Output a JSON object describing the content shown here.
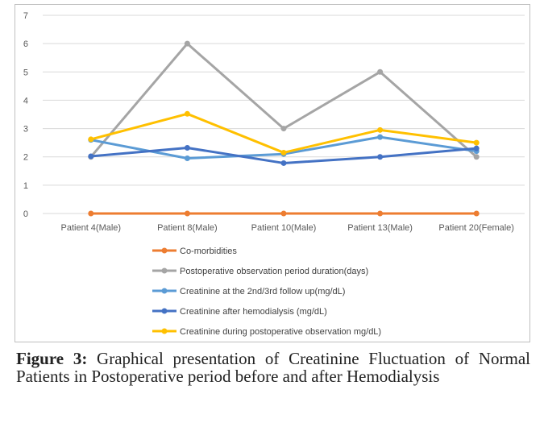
{
  "chart_data": {
    "type": "line",
    "title": "",
    "xlabel": "",
    "ylabel": "",
    "ylim": [
      0,
      7
    ],
    "yticks": [
      0,
      1,
      2,
      3,
      4,
      5,
      6,
      7
    ],
    "grid": true,
    "legend_position": "bottom",
    "categories": [
      "Patient 4(Male)",
      "Patient 8(Male)",
      "Patient 10(Male)",
      "Patient 13(Male)",
      "Patient 20(Female)"
    ],
    "series": [
      {
        "name": "Co-morbidities",
        "color": "#ed7d31",
        "values": [
          0,
          0,
          0,
          0,
          0
        ]
      },
      {
        "name": "Postoperative observation period duration(days)",
        "color": "#a5a5a5",
        "values": [
          2,
          6,
          3,
          5,
          2
        ]
      },
      {
        "name": "Creatinine at the 2nd/3rd follow up(mg/dL)",
        "color": "#5b9bd5",
        "values": [
          2.6,
          1.95,
          2.1,
          2.7,
          2.2
        ]
      },
      {
        "name": "Creatinine after hemodialysis (mg/dL)",
        "color": "#4472c4",
        "values": [
          2.02,
          2.32,
          1.78,
          2.0,
          2.3
        ]
      },
      {
        "name": "Creatinine during postoperative observation mg/dL)",
        "color": "#ffc000",
        "values": [
          2.62,
          3.52,
          2.15,
          2.95,
          2.5
        ]
      }
    ]
  },
  "caption": {
    "label": "Figure 3:",
    "text": "Graphical presentation of Creatinine Fluctuation of Normal Patients in Postoperative period before and after Hemodialysis"
  }
}
